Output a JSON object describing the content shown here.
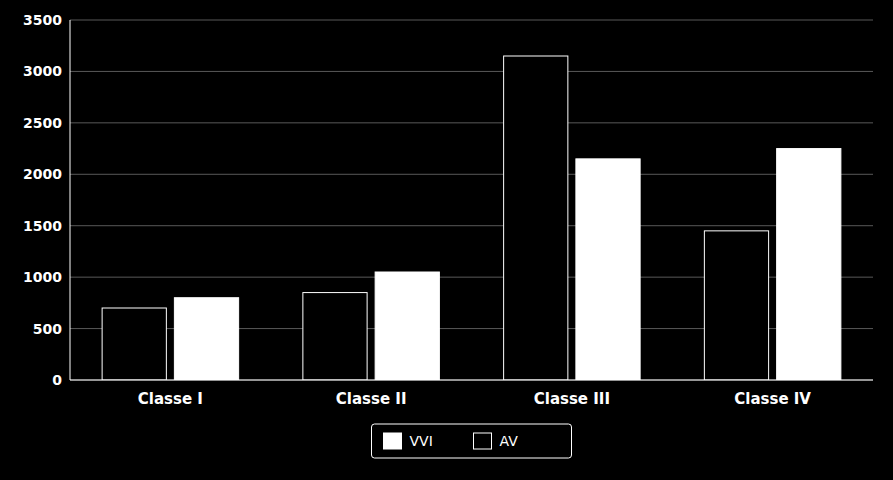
{
  "chart_data": {
    "type": "bar",
    "categories": [
      "Classe I",
      "Classe II",
      "Classe III",
      "Classe IV"
    ],
    "series": [
      {
        "name": "VVI",
        "color": "#ffffff",
        "values": [
          800,
          1050,
          2150,
          2250
        ]
      },
      {
        "name": "AV",
        "color": "#000000",
        "values": [
          700,
          850,
          3150,
          1450
        ]
      }
    ],
    "ylim": [
      0,
      3500
    ],
    "yticks": [
      0,
      500,
      1000,
      1500,
      2000,
      2500,
      3000,
      3500
    ],
    "grid": true,
    "legend": "bottom"
  }
}
